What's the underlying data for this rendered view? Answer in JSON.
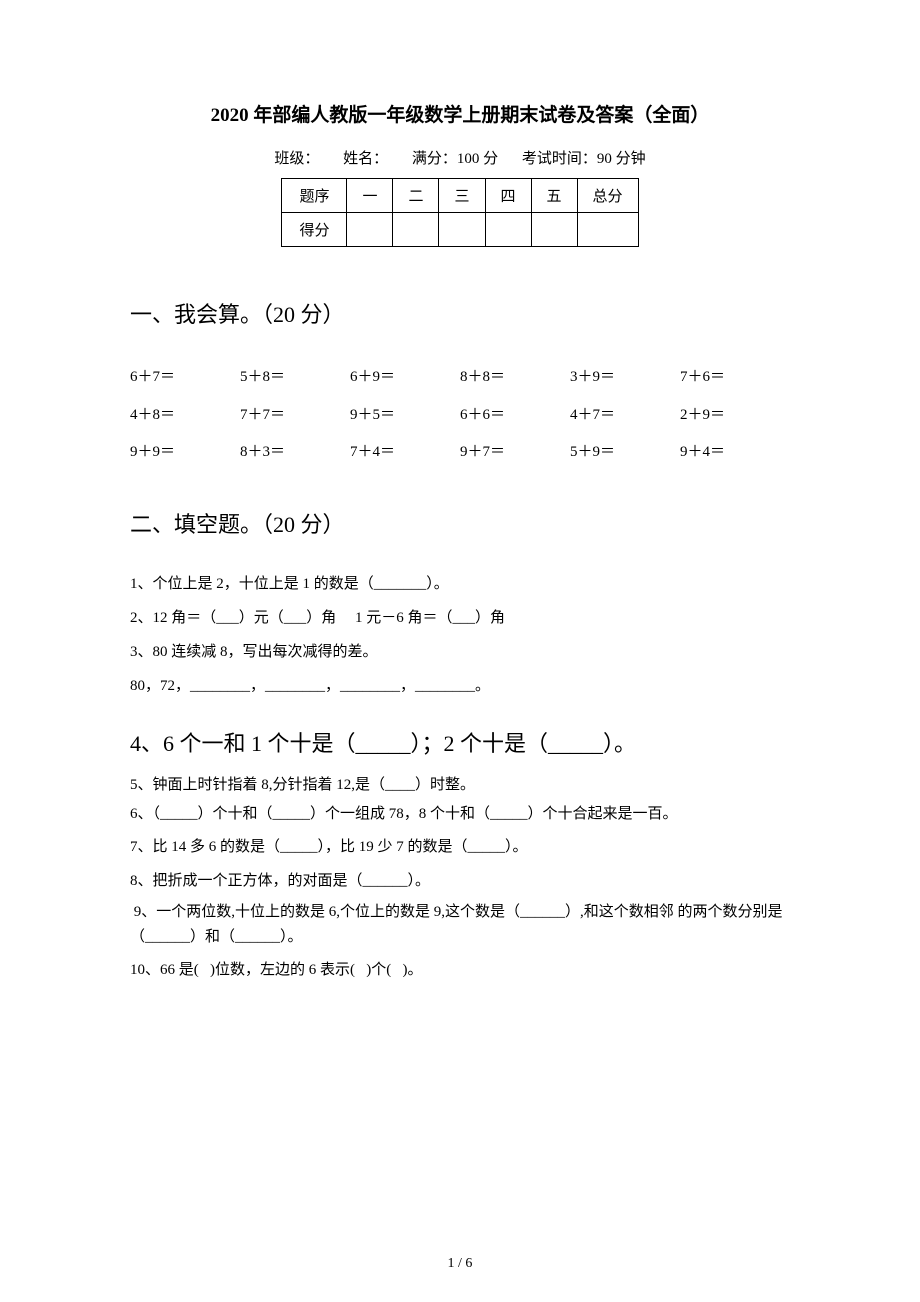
{
  "doc_title": "2020 年部编人教版一年级数学上册期末试卷及答案（全面）",
  "meta": {
    "class_label": "班级：",
    "name_label": "姓名：",
    "full_score_label": "满分：100 分",
    "time_label": "考试时间：90 分钟"
  },
  "score_table": {
    "row1": [
      "题序",
      "一",
      "二",
      "三",
      "四",
      "五",
      "总分"
    ],
    "row2_label": "得分"
  },
  "section1": {
    "header": "一、我会算。（20 分）",
    "rows": [
      [
        "6＋7＝",
        "5＋8＝",
        "6＋9＝",
        "8＋8＝",
        "3＋9＝",
        "7＋6＝"
      ],
      [
        "4＋8＝",
        "7＋7＝",
        "9＋5＝",
        "6＋6＝",
        "4＋7＝",
        "2＋9＝"
      ],
      [
        "9＋9＝",
        "8＋3＝",
        "7＋4＝",
        "9＋7＝",
        "5＋9＝",
        "9＋4＝"
      ]
    ]
  },
  "section2": {
    "header": "二、填空题。（20 分）",
    "q1": "1、个位上是 2，十位上是 1 的数是（_______）。",
    "q2": "2、12 角＝（___）元（___）角     1 元－6 角＝（___）角",
    "q3": "3、80 连续减 8，写出每次减得的差。",
    "q3b": "80，72，________，________，________，________。",
    "q4": "4、6 个一和 1 个十是（_____）；2 个十是（_____）。",
    "q5": "5、钟面上时针指着 8,分针指着 12,是（____）时整。",
    "q6": "6、（_____）个十和（_____）个一组成 78，8 个十和（_____）个十合起来是一百。",
    "q7": "7、比 14 多 6 的数是（_____），比 19 少 7 的数是（_____）。",
    "q8": "8、把折成一个正方体，的对面是（______）。",
    "q9": " 9、一个两位数,十位上的数是 6,个位上的数是 9,这个数是（______）,和这个数相邻 的两个数分别是（______）和（______）。",
    "q10": "10、66 是(   )位数，左边的 6 表示(   )个(   )。"
  },
  "page_number": "1 / 6",
  "styling": {
    "background_color": "#ffffff",
    "text_color": "#000000",
    "title_fontsize": 19,
    "section_header_fontsize": 22,
    "body_fontsize": 15,
    "font_family": "SimSun"
  }
}
